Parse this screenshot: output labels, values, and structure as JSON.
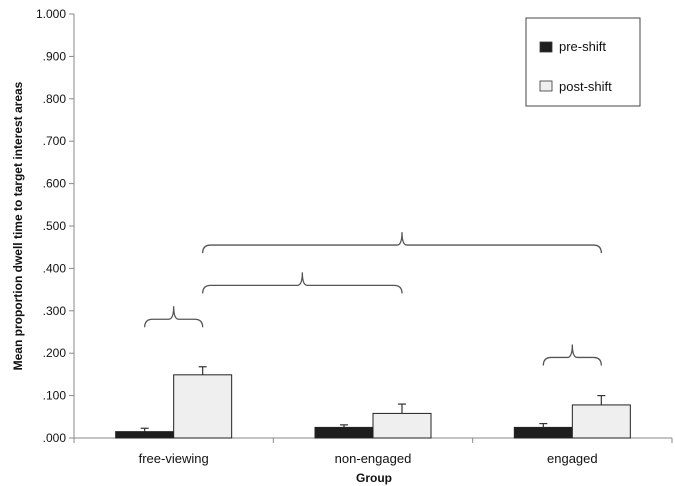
{
  "chart_data": {
    "type": "bar",
    "title": "",
    "xlabel": "Group",
    "ylabel": "Mean proportion  dwell time to target interest areas",
    "categories": [
      "free-viewing",
      "non-engaged",
      "engaged"
    ],
    "series": [
      {
        "name": "pre-shift",
        "color": "#1e1e1e",
        "values": [
          0.015,
          0.025,
          0.025
        ],
        "errors": [
          0.008,
          0.006,
          0.009
        ]
      },
      {
        "name": "post-shift",
        "color": "#efefef",
        "values": [
          0.149,
          0.058,
          0.078
        ],
        "errors": [
          0.019,
          0.022,
          0.022
        ]
      }
    ],
    "ylim": [
      0,
      1
    ],
    "yticks": [
      ".000",
      ".100",
      ".200",
      ".300",
      ".400",
      ".500",
      ".600",
      ".700",
      ".800",
      ".900",
      "1.000"
    ],
    "ytick_values": [
      0,
      0.1,
      0.2,
      0.3,
      0.4,
      0.5,
      0.6,
      0.7,
      0.8,
      0.9,
      1.0
    ],
    "legend_position": "top-right",
    "grid": false,
    "comparison_brackets": [
      {
        "from": "free-viewing:pre-shift",
        "to": "free-viewing:post-shift",
        "level": 0.28
      },
      {
        "from": "free-viewing:post-shift",
        "to": "non-engaged:post-shift",
        "level": 0.36
      },
      {
        "from": "free-viewing:post-shift",
        "to": "engaged:post-shift",
        "level": 0.455
      },
      {
        "from": "engaged:pre-shift",
        "to": "engaged:post-shift",
        "level": 0.19
      }
    ]
  }
}
